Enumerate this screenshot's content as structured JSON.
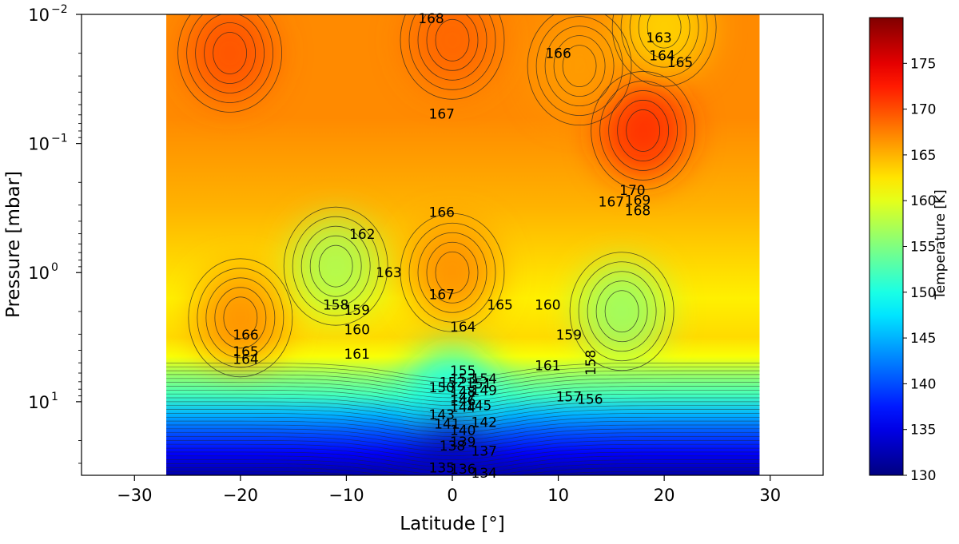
{
  "chart_data": {
    "type": "heatmap",
    "title": "",
    "xlabel": "Latitude [°]",
    "ylabel": "Pressure [mbar]",
    "xlim": [
      -35,
      35
    ],
    "ylim_log10": [
      -2,
      1.57
    ],
    "y_scale": "log",
    "y_inverted": true,
    "x_ticks": [
      {
        "value": -30,
        "label": "−30"
      },
      {
        "value": -20,
        "label": "−20"
      },
      {
        "value": -10,
        "label": "−10"
      },
      {
        "value": 0,
        "label": "0"
      },
      {
        "value": 10,
        "label": "10"
      },
      {
        "value": 20,
        "label": "20"
      },
      {
        "value": 30,
        "label": "30"
      }
    ],
    "y_ticks": [
      {
        "value": -2,
        "base": "10",
        "exp": "−2"
      },
      {
        "value": -1,
        "base": "10",
        "exp": "−1"
      },
      {
        "value": 0,
        "base": "10",
        "exp": "0"
      },
      {
        "value": 1,
        "base": "10",
        "exp": "1"
      }
    ],
    "data_extent_lat": [
      -27,
      29
    ],
    "colorbar": {
      "label": "Temperature [K]",
      "range": [
        130,
        180
      ],
      "ticks": [
        "130",
        "135",
        "140",
        "145",
        "150",
        "155",
        "160",
        "165",
        "170",
        "175"
      ],
      "colormap": "jet"
    },
    "temperature_features": [
      {
        "lat": -21,
        "log10p": -1.7,
        "temp": 170
      },
      {
        "lat": 0,
        "log10p": -1.8,
        "temp": 169
      },
      {
        "lat": 18,
        "log10p": -1.1,
        "temp": 172
      },
      {
        "lat": 12,
        "log10p": -1.6,
        "temp": 166
      },
      {
        "lat": 20,
        "log10p": -1.9,
        "temp": 163
      },
      {
        "lat": -11,
        "log10p": -0.05,
        "temp": 157
      },
      {
        "lat": -20,
        "log10p": 0.35,
        "temp": 167
      },
      {
        "lat": 0,
        "log10p": 0.0,
        "temp": 167
      },
      {
        "lat": 16,
        "log10p": 0.3,
        "temp": 156
      },
      {
        "lat": 0,
        "log10p": 0.95,
        "temp": 150
      },
      {
        "lat": 0,
        "log10p": 1.5,
        "temp": 133
      }
    ],
    "contour_labels": [
      {
        "text": "163",
        "lat": 19.5,
        "log10p": -1.82
      },
      {
        "text": "164",
        "lat": 19.8,
        "log10p": -1.68
      },
      {
        "text": "165",
        "lat": 21.5,
        "log10p": -1.63
      },
      {
        "text": "166",
        "lat": 10,
        "log10p": -1.7
      },
      {
        "text": "167",
        "lat": -1,
        "log10p": -1.23
      },
      {
        "text": "170",
        "lat": 17,
        "log10p": -0.64
      },
      {
        "text": "167",
        "lat": 15,
        "log10p": -0.55
      },
      {
        "text": "169",
        "lat": 17.5,
        "log10p": -0.56
      },
      {
        "text": "168",
        "lat": 17.5,
        "log10p": -0.48
      },
      {
        "text": "166",
        "lat": -1,
        "log10p": -0.47
      },
      {
        "text": "162",
        "lat": -8.5,
        "log10p": -0.3
      },
      {
        "text": "163",
        "lat": -6,
        "log10p": 0.0
      },
      {
        "text": "167",
        "lat": -1,
        "log10p": 0.17
      },
      {
        "text": "165",
        "lat": 4.5,
        "log10p": 0.25
      },
      {
        "text": "160",
        "lat": 9,
        "log10p": 0.25
      },
      {
        "text": "158",
        "lat": -11,
        "log10p": 0.25
      },
      {
        "text": "159",
        "lat": -9,
        "log10p": 0.29
      },
      {
        "text": "164",
        "lat": 1,
        "log10p": 0.42
      },
      {
        "text": "160",
        "lat": -9,
        "log10p": 0.44
      },
      {
        "text": "159",
        "lat": 11,
        "log10p": 0.48
      },
      {
        "text": "166",
        "lat": -19.5,
        "log10p": 0.48
      },
      {
        "text": "165",
        "lat": -19.5,
        "log10p": 0.61
      },
      {
        "text": "164",
        "lat": -19.5,
        "log10p": 0.67
      },
      {
        "text": "161",
        "lat": -9,
        "log10p": 0.63
      },
      {
        "text": "161",
        "lat": 9,
        "log10p": 0.72
      },
      {
        "text": "158",
        "lat": 13.5,
        "log10p": 0.66,
        "rotate": -90
      },
      {
        "text": "155",
        "lat": 1,
        "log10p": 0.76
      },
      {
        "text": "153",
        "lat": 1,
        "log10p": 0.82
      },
      {
        "text": "154",
        "lat": 3,
        "log10p": 0.82
      },
      {
        "text": "152",
        "lat": 0,
        "log10p": 0.85
      },
      {
        "text": "151",
        "lat": 2.5,
        "log10p": 0.86
      },
      {
        "text": "150",
        "lat": -1,
        "log10p": 0.89
      },
      {
        "text": "148",
        "lat": 1,
        "log10p": 0.92
      },
      {
        "text": "149",
        "lat": 3,
        "log10p": 0.91
      },
      {
        "text": "147",
        "lat": 1,
        "log10p": 0.96
      },
      {
        "text": "146",
        "lat": 1,
        "log10p": 0.99
      },
      {
        "text": "145",
        "lat": 2.5,
        "log10p": 1.03
      },
      {
        "text": "144",
        "lat": 1,
        "log10p": 1.04
      },
      {
        "text": "143",
        "lat": -1,
        "log10p": 1.1
      },
      {
        "text": "141",
        "lat": -0.5,
        "log10p": 1.17
      },
      {
        "text": "142",
        "lat": 3,
        "log10p": 1.16
      },
      {
        "text": "140",
        "lat": 1,
        "log10p": 1.22
      },
      {
        "text": "139",
        "lat": 1,
        "log10p": 1.31
      },
      {
        "text": "138",
        "lat": 0,
        "log10p": 1.34
      },
      {
        "text": "137",
        "lat": 3,
        "log10p": 1.38
      },
      {
        "text": "135",
        "lat": -1,
        "log10p": 1.51
      },
      {
        "text": "136",
        "lat": 1,
        "log10p": 1.52
      },
      {
        "text": "134",
        "lat": 3,
        "log10p": 1.55
      },
      {
        "text": "157",
        "lat": 11,
        "log10p": 0.96
      },
      {
        "text": "156",
        "lat": 13,
        "log10p": 0.98
      },
      {
        "text": "168",
        "lat": -2,
        "log10p": -1.97
      }
    ]
  }
}
